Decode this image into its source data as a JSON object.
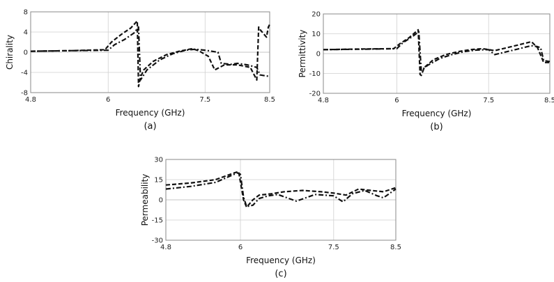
{
  "chart_data": [
    {
      "type": "line",
      "panel_label": "(a)",
      "xlabel": "Frequency (GHz)",
      "ylabel": "Chirality",
      "xlim": [
        4.8,
        8.5
      ],
      "ylim": [
        -8,
        8
      ],
      "xticks": [
        "4.8",
        "6",
        "7.5",
        "8.5"
      ],
      "yticks": [
        "8",
        "4",
        "0",
        "-4",
        "-8"
      ],
      "grid": true,
      "series": [
        {
          "style": "dashed",
          "x": [
            4.8,
            5.4,
            5.95,
            6.05,
            6.2,
            6.35,
            6.45,
            6.47,
            6.5,
            6.55,
            6.7,
            6.9,
            7.1,
            7.3,
            7.4,
            7.55,
            7.65,
            7.8,
            8.0,
            8.2,
            8.3,
            8.33,
            8.35,
            8.45,
            8.48,
            8.5
          ],
          "y": [
            0.2,
            0.3,
            0.5,
            2.0,
            3.5,
            4.8,
            6.2,
            -6.8,
            -5.0,
            -3.5,
            -1.8,
            -0.5,
            0.2,
            0.7,
            0.3,
            -0.8,
            -3.5,
            -2.5,
            -2.5,
            -3.0,
            -5.5,
            5.0,
            4.5,
            3.0,
            5.0,
            5.5
          ]
        },
        {
          "style": "dash-dot",
          "x": [
            4.8,
            5.4,
            6.0,
            6.1,
            6.25,
            6.4,
            6.47,
            6.5,
            6.6,
            6.8,
            7.0,
            7.2,
            7.35,
            7.5,
            7.7,
            7.75,
            7.9,
            8.0,
            8.15,
            8.3,
            8.35,
            8.5
          ],
          "y": [
            0.2,
            0.3,
            0.4,
            1.5,
            2.5,
            3.8,
            5.0,
            -5.5,
            -3.5,
            -1.5,
            -0.3,
            0.4,
            0.6,
            0.4,
            0.0,
            -2.2,
            -2.4,
            -2.2,
            -2.5,
            -3.0,
            -4.5,
            -4.8
          ]
        }
      ]
    },
    {
      "type": "line",
      "panel_label": "(b)",
      "xlabel": "Frequency (GHz)",
      "ylabel": "Permittivity",
      "xlim": [
        4.8,
        8.5
      ],
      "ylim": [
        -20,
        20
      ],
      "xticks": [
        "4.8",
        "6",
        "7.5",
        "8.5"
      ],
      "yticks": [
        "20",
        "10",
        "0",
        "-10",
        "-20"
      ],
      "grid": true,
      "series": [
        {
          "style": "dashed",
          "x": [
            4.8,
            5.4,
            5.95,
            6.05,
            6.2,
            6.35,
            6.38,
            6.4,
            6.45,
            6.6,
            6.8,
            7.0,
            7.2,
            7.4,
            7.6,
            7.8,
            8.0,
            8.2,
            8.3,
            8.4,
            8.5
          ],
          "y": [
            2.0,
            2.3,
            2.5,
            5.0,
            8.0,
            12.0,
            -10.5,
            -11.0,
            -7.0,
            -3.0,
            -0.5,
            1.0,
            2.0,
            2.5,
            1.5,
            3.0,
            4.5,
            6.0,
            3.0,
            -4.5,
            -4.5
          ]
        },
        {
          "style": "dash-dot",
          "x": [
            4.8,
            5.4,
            6.0,
            6.1,
            6.25,
            6.36,
            6.4,
            6.5,
            6.7,
            6.9,
            7.1,
            7.3,
            7.5,
            7.6,
            7.8,
            8.0,
            8.2,
            8.3,
            8.35,
            8.4,
            8.5
          ],
          "y": [
            2.0,
            2.2,
            2.5,
            5.5,
            8.5,
            11.0,
            -8.5,
            -6.0,
            -2.5,
            -0.5,
            1.0,
            1.8,
            2.0,
            -0.5,
            1.0,
            2.5,
            4.0,
            3.5,
            3.0,
            -3.5,
            -4.0
          ]
        }
      ]
    },
    {
      "type": "line",
      "panel_label": "(c)",
      "xlabel": "Frequency (GHz)",
      "ylabel": "Permeability",
      "xlim": [
        4.8,
        8.5
      ],
      "ylim": [
        -30,
        30
      ],
      "xticks": [
        "4.8",
        "6",
        "7.5",
        "8.5"
      ],
      "yticks": [
        "30",
        "15",
        "0",
        "-15",
        "-30"
      ],
      "grid": true,
      "series": [
        {
          "style": "dashed",
          "x": [
            4.8,
            5.2,
            5.6,
            5.9,
            5.97,
            6.05,
            6.1,
            6.2,
            6.3,
            6.5,
            6.7,
            7.0,
            7.3,
            7.5,
            7.7,
            7.9,
            8.1,
            8.3,
            8.5
          ],
          "y": [
            11.0,
            12.5,
            15.0,
            20.0,
            21.0,
            0.0,
            -5.5,
            0.0,
            3.5,
            4.5,
            6.0,
            7.0,
            6.0,
            5.0,
            3.5,
            8.0,
            7.0,
            6.0,
            9.0
          ]
        },
        {
          "style": "dash-dot",
          "x": [
            4.8,
            5.2,
            5.6,
            5.95,
            6.0,
            6.05,
            6.1,
            6.2,
            6.3,
            6.45,
            6.6,
            6.9,
            7.2,
            7.5,
            7.65,
            7.8,
            8.0,
            8.2,
            8.3,
            8.5
          ],
          "y": [
            8.0,
            10.0,
            13.0,
            20.0,
            19.0,
            2.0,
            -5.0,
            -4.0,
            1.0,
            3.0,
            4.0,
            -1.0,
            4.0,
            3.0,
            -1.5,
            4.5,
            7.0,
            3.0,
            1.5,
            8.0
          ]
        }
      ]
    }
  ]
}
